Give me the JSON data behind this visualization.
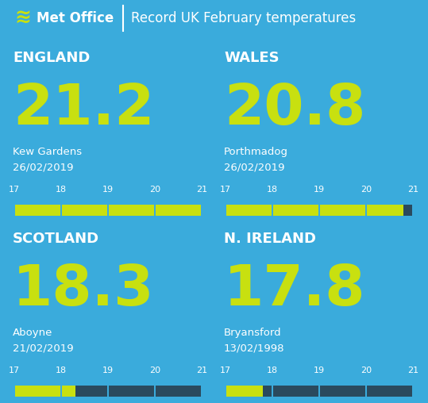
{
  "title": "Record UK February temperatures",
  "header_bg": "#1878be",
  "panel_title_bg": "#1b3a54",
  "panel_main_bg": "#1e5c8a",
  "bar_bg": "#192d3e",
  "bar_fill": "#c8e010",
  "bar_empty": "#2a4a5e",
  "outer_bg": "#3aabdc",
  "temp_color": "#c8e010",
  "white": "#ffffff",
  "divider_color": "#5cb8e0",
  "panels": [
    {
      "nation": "ENGLAND",
      "temp": "21.2",
      "temp_val": 21.2,
      "location": "Kew Gardens",
      "date": "26/02/2019"
    },
    {
      "nation": "WALES",
      "temp": "20.8",
      "temp_val": 20.8,
      "location": "Porthmadog",
      "date": "26/02/2019"
    },
    {
      "nation": "SCOTLAND",
      "temp": "18.3",
      "temp_val": 18.3,
      "location": "Aboyne",
      "date": "21/02/2019"
    },
    {
      "nation": "N. IRELAND",
      "temp": "17.8",
      "temp_val": 17.8,
      "location": "Bryansford",
      "date": "13/02/1998"
    }
  ],
  "bar_ticks": [
    17,
    18,
    19,
    20,
    21
  ],
  "figw": 5.39,
  "figh": 5.08,
  "dpi": 100
}
